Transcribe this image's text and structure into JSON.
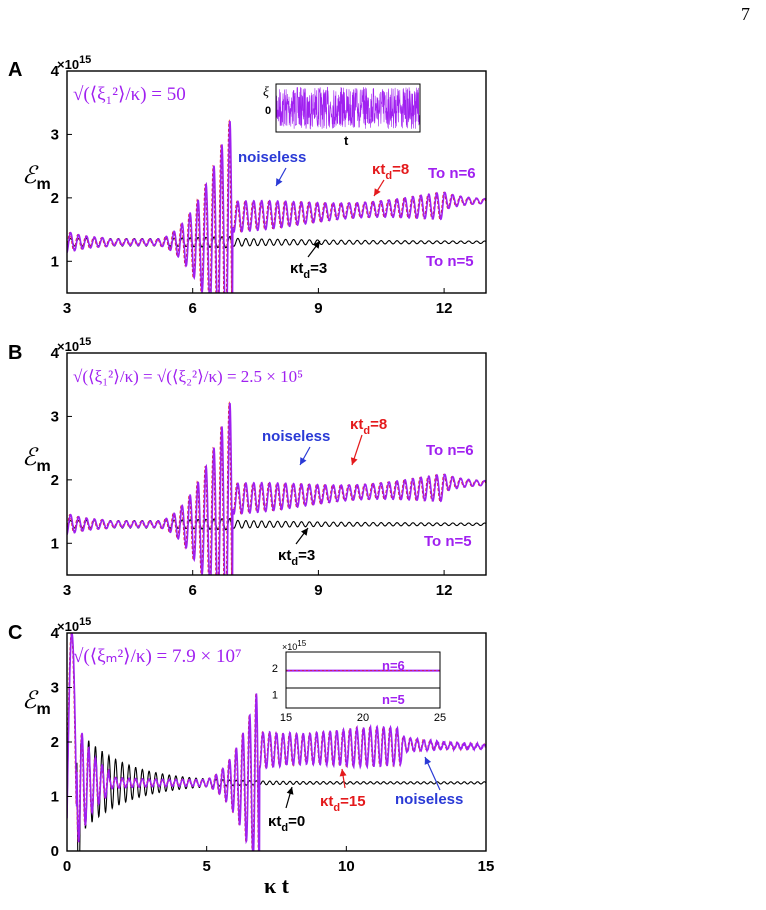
{
  "page_number": "7",
  "colors": {
    "purple": "#a020f0",
    "red": "#e41a1c",
    "blue": "#2a3ad6",
    "black": "#000000"
  },
  "chart_data": [
    {
      "panel": "A",
      "type": "line",
      "xlim": [
        3,
        13
      ],
      "xticks": [
        "3",
        "6",
        "9",
        "12"
      ],
      "ylim": [
        0.5,
        4
      ],
      "yticks": [
        "1",
        "2",
        "3",
        "4"
      ],
      "yexp": "15",
      "ylabel_sym": "ℰ",
      "ylabel_sub": "m",
      "formula": "√(⟨ξ₁²⟩/κ) = 50",
      "annotations": {
        "noiseless": "noiseless",
        "ktd_top": "κt",
        "ktd_top_sub": "d",
        "ktd_top_val": "=8",
        "ktd_bot": "κt",
        "ktd_bot_sub": "d",
        "ktd_bot_val": "=3",
        "to6": "To n=6",
        "to5": "To n=5"
      },
      "inset": {
        "ylabel": "ξ",
        "ytick": "0",
        "xlabel": "t"
      },
      "series": [
        {
          "color": "black",
          "base": 1.28,
          "final": 1.24,
          "switch": null
        },
        {
          "color": "red",
          "base": 1.28,
          "final": 1.95,
          "switch": 7.0
        },
        {
          "color": "purple",
          "base": 1.28,
          "final": 1.95,
          "switch": 7.0
        }
      ]
    },
    {
      "panel": "B",
      "type": "line",
      "xlim": [
        3,
        13
      ],
      "xticks": [
        "3",
        "6",
        "9",
        "12"
      ],
      "ylim": [
        0.5,
        4
      ],
      "yticks": [
        "1",
        "2",
        "3",
        "4"
      ],
      "yexp": "15",
      "ylabel_sym": "ℰ",
      "ylabel_sub": "m",
      "formula": "√(⟨ξ₁²⟩/κ) = √(⟨ξ₂²⟩/κ) = 2.5 × 10⁵",
      "annotations": {
        "noiseless": "noiseless",
        "ktd_top": "κt",
        "ktd_top_sub": "d",
        "ktd_top_val": "=8",
        "ktd_bot": "κt",
        "ktd_bot_sub": "d",
        "ktd_bot_val": "=3",
        "to6": "To n=6",
        "to5": "To n=5"
      },
      "series": [
        {
          "color": "black",
          "base": 1.3,
          "final": 1.25,
          "switch": null
        },
        {
          "color": "red",
          "base": 1.3,
          "final": 1.95,
          "switch": 7.0
        },
        {
          "color": "purple",
          "base": 1.3,
          "final": 1.95,
          "switch": 7.0
        }
      ]
    },
    {
      "panel": "C",
      "type": "line",
      "xlim": [
        0,
        15
      ],
      "xticks": [
        "0",
        "5",
        "10",
        "15"
      ],
      "ylim": [
        0,
        4
      ],
      "yticks": [
        "0",
        "1",
        "2",
        "3",
        "4"
      ],
      "yexp": "15",
      "ylabel_sym": "ℰ",
      "ylabel_sub": "m",
      "xlabel": "κ t",
      "formula": "√(⟨ξₘ²⟩/κ) = 7.9 × 10⁷",
      "annotations": {
        "noiseless": "noiseless",
        "ktd_top": "κt",
        "ktd_top_sub": "d",
        "ktd_top_val": "=15",
        "ktd_bot": "κt",
        "ktd_bot_sub": "d",
        "ktd_bot_val": "=0"
      },
      "inset": {
        "xticks": [
          "15",
          "20",
          "25"
        ],
        "yticks": [
          "1",
          "2"
        ],
        "yexp": "15",
        "n6": "n=6",
        "n5": "n=5"
      },
      "series": [
        {
          "color": "black",
          "base": 1.25,
          "final": 1.25,
          "switch": null
        },
        {
          "color": "red",
          "base": 1.25,
          "final": 1.9,
          "switch": 7.0
        },
        {
          "color": "purple",
          "base": 1.25,
          "final": 1.9,
          "switch": 7.0
        }
      ]
    }
  ]
}
